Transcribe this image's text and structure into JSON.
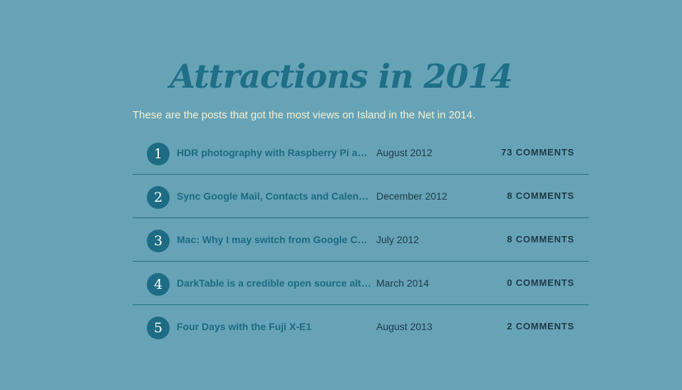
{
  "page": {
    "title": "Attractions in 2014",
    "intro": "These are the posts that got the most views on Island in the Net in 2014."
  },
  "posts": [
    {
      "number": "1",
      "title": "HDR photography with Raspberry Pi and a DSLR",
      "date": "August 2012",
      "comments": "73 COMMENTS"
    },
    {
      "number": "2",
      "title": "Sync Google Mail, Contacts and Calendar with OS X",
      "date": "December 2012",
      "comments": "8 COMMENTS"
    },
    {
      "number": "3",
      "title": "Mac: Why I may switch from Google Chrome to Safari",
      "date": "July 2012",
      "comments": "8 COMMENTS"
    },
    {
      "number": "4",
      "title": "DarkTable is a credible open source alternative to Lightroom",
      "date": "March 2014",
      "comments": "0 COMMENTS"
    },
    {
      "number": "5",
      "title": "Four Days with the Fuji X-E1",
      "date": "August 2013",
      "comments": "2 COMMENTS"
    }
  ],
  "colors": {
    "background": "#67a3b7",
    "accent": "#1e6c83",
    "intro_text": "#f5f0cf",
    "dark_text": "#1d3a45"
  }
}
